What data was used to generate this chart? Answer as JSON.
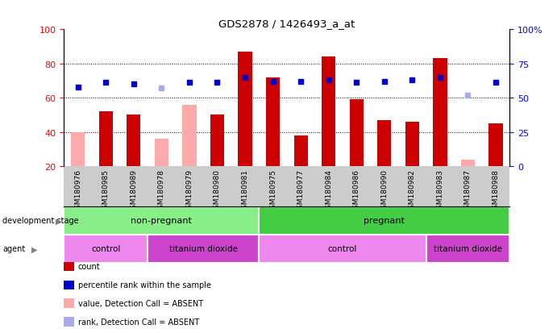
{
  "title": "GDS2878 / 1426493_a_at",
  "samples": [
    "GSM180976",
    "GSM180985",
    "GSM180989",
    "GSM180978",
    "GSM180979",
    "GSM180980",
    "GSM180981",
    "GSM180975",
    "GSM180977",
    "GSM180984",
    "GSM180986",
    "GSM180990",
    "GSM180982",
    "GSM180983",
    "GSM180987",
    "GSM180988"
  ],
  "count_values": [
    null,
    52,
    50,
    null,
    null,
    50,
    87,
    72,
    38,
    84,
    59,
    47,
    46,
    83,
    null,
    45
  ],
  "count_absent": [
    40,
    null,
    null,
    36,
    56,
    null,
    null,
    null,
    null,
    null,
    null,
    null,
    null,
    null,
    24,
    null
  ],
  "rank_values": [
    58,
    61,
    60,
    null,
    61,
    61,
    65,
    62,
    62,
    63,
    61,
    62,
    63,
    65,
    null,
    61
  ],
  "rank_absent": [
    null,
    null,
    null,
    57,
    null,
    null,
    null,
    null,
    null,
    null,
    null,
    null,
    null,
    null,
    52,
    null
  ],
  "ylim_left": [
    20,
    100
  ],
  "ylim_right": [
    0,
    100
  ],
  "left_ticks": [
    20,
    40,
    60,
    80,
    100
  ],
  "right_ticks": [
    0,
    25,
    50,
    75,
    100
  ],
  "right_tick_labels": [
    "0",
    "25",
    "50",
    "75",
    "100%"
  ],
  "color_count": "#cc0000",
  "color_count_absent": "#ffaaaa",
  "color_rank": "#0000cc",
  "color_rank_absent": "#aaaaee",
  "gray_bg": "#cccccc",
  "dev_stage_groups": [
    {
      "label": "non-pregnant",
      "start": 0,
      "end": 6,
      "color": "#88ee88"
    },
    {
      "label": "pregnant",
      "start": 7,
      "end": 15,
      "color": "#44cc44"
    }
  ],
  "agent_groups": [
    {
      "label": "control",
      "start": 0,
      "end": 2,
      "color": "#ee88ee"
    },
    {
      "label": "titanium dioxide",
      "start": 3,
      "end": 6,
      "color": "#cc44cc"
    },
    {
      "label": "control",
      "start": 7,
      "end": 12,
      "color": "#ee88ee"
    },
    {
      "label": "titanium dioxide",
      "start": 13,
      "end": 15,
      "color": "#cc44cc"
    }
  ],
  "legend_items": [
    {
      "label": "count",
      "color": "#cc0000"
    },
    {
      "label": "percentile rank within the sample",
      "color": "#0000cc"
    },
    {
      "label": "value, Detection Call = ABSENT",
      "color": "#ffaaaa"
    },
    {
      "label": "rank, Detection Call = ABSENT",
      "color": "#aaaaee"
    }
  ],
  "bar_width": 0.5,
  "marker_size": 5
}
